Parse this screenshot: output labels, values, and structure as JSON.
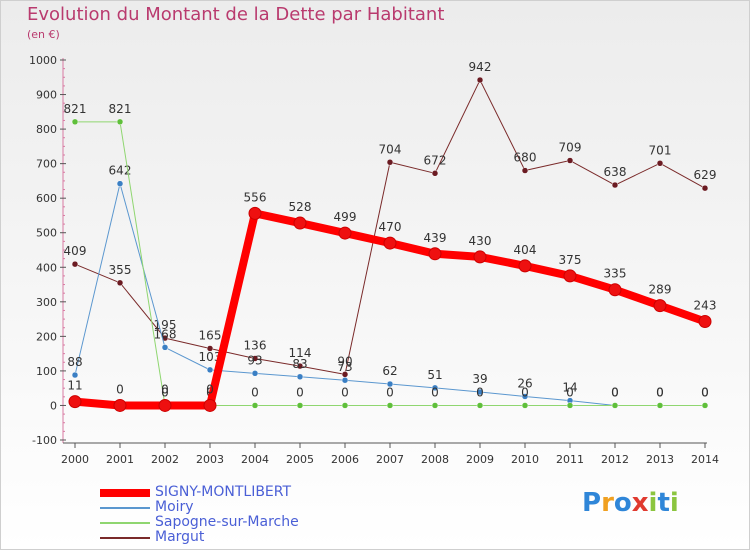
{
  "title": "Evolution du Montant de la Dette par Habitant",
  "subtitle": "(en €)",
  "logo": {
    "text": "Proxiti",
    "letters": [
      {
        "ch": "P",
        "color": "#2f86d8"
      },
      {
        "ch": "r",
        "color": "#f0a020"
      },
      {
        "ch": "o",
        "color": "#2f86d8"
      },
      {
        "ch": "x",
        "color": "#e03a2f"
      },
      {
        "ch": "i",
        "color": "#8bc53f"
      },
      {
        "ch": "t",
        "color": "#2f86d8"
      },
      {
        "ch": "i",
        "color": "#8bc53f"
      }
    ]
  },
  "chart_data": {
    "type": "line",
    "title": "Evolution du Montant de la Dette par Habitant",
    "subtitle": "(en €)",
    "x": [
      "2000",
      "2001",
      "2002",
      "2003",
      "2004",
      "2005",
      "2006",
      "2007",
      "2008",
      "2009",
      "2010",
      "2011",
      "2012",
      "2013",
      "2014"
    ],
    "ylim": [
      -100,
      1000
    ],
    "yticks": [
      "-100",
      "0",
      "100",
      "200",
      "300",
      "400",
      "500",
      "600",
      "700",
      "800",
      "900",
      "1000"
    ],
    "grid": false,
    "legend_position": "bottom-left",
    "series": [
      {
        "name": "Margut",
        "color": "#7a2a2a",
        "marker": "#6b1b22",
        "width": 1,
        "values": [
          409,
          355,
          195,
          165,
          136,
          114,
          90,
          704,
          672,
          942,
          680,
          709,
          638,
          701,
          629
        ],
        "labels": [
          "409",
          "355",
          "195",
          "165",
          "136",
          "114",
          "90",
          "704",
          "672",
          "942",
          "680",
          "709",
          "638",
          "701",
          "629"
        ]
      },
      {
        "name": "Moiry",
        "color": "#5b97cf",
        "marker": "#3a7fc4",
        "width": 1,
        "values": [
          88,
          642,
          168,
          103,
          93,
          83,
          73,
          62,
          51,
          39,
          26,
          14,
          0,
          0,
          0
        ],
        "labels": [
          "88",
          "642",
          "168",
          "103",
          "93",
          "83",
          "73",
          "62",
          "51",
          "39",
          "26",
          "14",
          "0",
          "0",
          "0"
        ]
      },
      {
        "name": "Sapogne-sur-Marche",
        "color": "#8fd670",
        "marker": "#5fbf3a",
        "width": 1,
        "values": [
          821,
          821,
          0,
          0,
          0,
          0,
          0,
          0,
          0,
          0,
          0,
          0,
          0,
          0,
          0
        ],
        "labels": [
          "821",
          "821",
          "0",
          "0",
          "0",
          "0",
          "0",
          "0",
          "0",
          "0",
          "0",
          "0",
          "0",
          "0",
          "0"
        ]
      },
      {
        "name": "SIGNY-MONTLIBERT",
        "color": "#ff0000",
        "marker": "#ee1010",
        "width": 8,
        "values": [
          11,
          0,
          0,
          0,
          556,
          528,
          499,
          470,
          439,
          430,
          404,
          375,
          335,
          289,
          243
        ],
        "labels": [
          "11",
          "0",
          "0",
          "0",
          "556",
          "528",
          "499",
          "470",
          "439",
          "430",
          "404",
          "375",
          "335",
          "289",
          "243"
        ]
      }
    ]
  },
  "legend": [
    {
      "name": "SIGNY-MONTLIBERT",
      "color": "#ff0000",
      "thickness": 8
    },
    {
      "name": "Moiry",
      "color": "#5b97cf",
      "thickness": 2
    },
    {
      "name": "Sapogne-sur-Marche",
      "color": "#8fd670",
      "thickness": 2
    },
    {
      "name": "Margut",
      "color": "#7a2a2a",
      "thickness": 2
    }
  ]
}
